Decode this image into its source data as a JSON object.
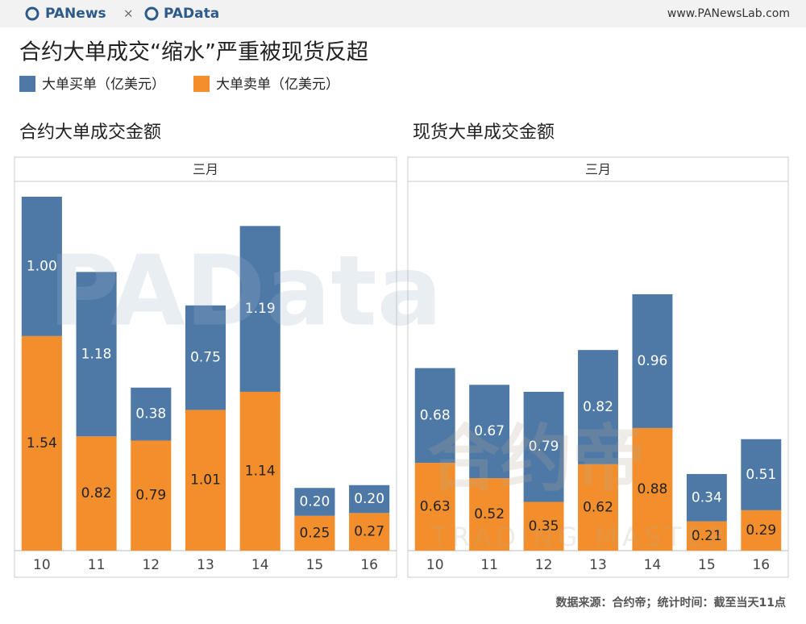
{
  "header": {
    "brand1": "PANews",
    "separator": "×",
    "brand2": "PAData",
    "url": "www.PANewsLab.com"
  },
  "title": "合约大单成交“缩水”严重被现货反超",
  "watermark": [
    "PAData",
    "合约帝",
    "TRADING MASTER"
  ],
  "source": "数据来源：合约帝；统计时间：截至当天11点",
  "chart_data": [
    {
      "type": "bar",
      "stacked": true,
      "title": "合约大单成交金额",
      "facet_label": "三月",
      "categories": [
        "10",
        "11",
        "12",
        "13",
        "14",
        "15",
        "16"
      ],
      "series": [
        {
          "name": "大单买单（亿美元）",
          "color": "#4e79a7",
          "values": [
            1.0,
            1.18,
            0.38,
            0.75,
            1.19,
            0.2,
            0.2
          ],
          "value_labels": [
            "1.00",
            "1.18",
            "0.38",
            "0.75",
            "1.19",
            "0.20",
            "0.20"
          ]
        },
        {
          "name": "大单卖单（亿美元）",
          "color": "#f28e2b",
          "values": [
            1.54,
            0.82,
            0.79,
            1.01,
            1.14,
            0.25,
            0.27
          ],
          "value_labels": [
            "1.54",
            "0.82",
            "0.79",
            "1.01",
            "1.14",
            "0.25",
            "0.27"
          ]
        }
      ],
      "ylim": [
        0,
        2.65
      ]
    },
    {
      "type": "bar",
      "stacked": true,
      "title": "现货大单成交金额",
      "facet_label": "三月",
      "categories": [
        "10",
        "11",
        "12",
        "13",
        "14",
        "15",
        "16"
      ],
      "series": [
        {
          "color": "#4e79a7",
          "values": [
            0.68,
            0.67,
            0.79,
            0.82,
            0.96,
            0.34,
            0.51
          ],
          "value_labels": [
            "0.68",
            "0.67",
            "0.79",
            "0.82",
            "0.96",
            "0.34",
            "0.51"
          ]
        },
        {
          "color": "#f28e2b",
          "values": [
            0.63,
            0.52,
            0.35,
            0.62,
            0.88,
            0.21,
            0.29
          ],
          "value_labels": [
            "0.63",
            "0.52",
            "0.35",
            "0.62",
            "0.88",
            "0.21",
            "0.29"
          ]
        }
      ],
      "ylim": [
        0,
        2.65
      ]
    }
  ]
}
